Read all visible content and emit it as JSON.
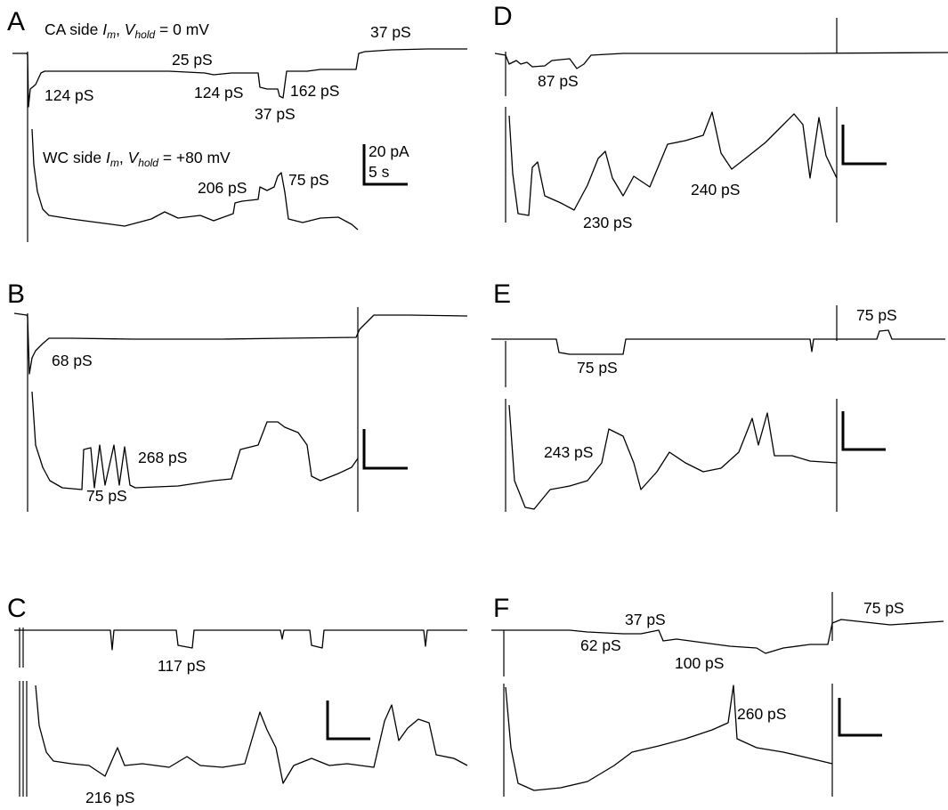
{
  "panels": [
    {
      "letter": "A",
      "labels": {
        "top1": "124 pS",
        "top2": "25 pS",
        "top3": "124 pS",
        "top4": "37 pS",
        "top5": "162 pS",
        "top6": "37 pS",
        "bot1": "206 pS",
        "bot2": "75 pS"
      }
    },
    {
      "letter": "B",
      "labels": {
        "top1": "68 pS",
        "bot1": "268 pS",
        "bot2": "75 pS"
      }
    },
    {
      "letter": "C",
      "labels": {
        "top1": "117 pS",
        "bot1": "216 pS"
      }
    },
    {
      "letter": "D",
      "labels": {
        "top1": "87 pS",
        "bot1": "230 pS",
        "bot2": "240 pS"
      }
    },
    {
      "letter": "E",
      "labels": {
        "top1": "75 pS",
        "top2": "75 pS",
        "bot1": "243 pS"
      }
    },
    {
      "letter": "F",
      "labels": {
        "top1": "37 pS",
        "top2": "62 pS",
        "top3": "100 pS",
        "top4": "75 pS",
        "bot1": "260 pS"
      }
    }
  ],
  "ca_side": {
    "prefix": "CA side ",
    "i": "I",
    "sub_m": "m",
    "sep": ", ",
    "v": "V",
    "sub_hold": "hold",
    "value": " = 0 mV"
  },
  "wc_side": {
    "prefix": "WC side ",
    "i": "I",
    "sub_m": "m",
    "sep": ", ",
    "v": "V",
    "sub_hold": "hold",
    "value": " = +80 mV"
  },
  "scale_bar": {
    "current": "20 pA",
    "time": "5 s"
  }
}
